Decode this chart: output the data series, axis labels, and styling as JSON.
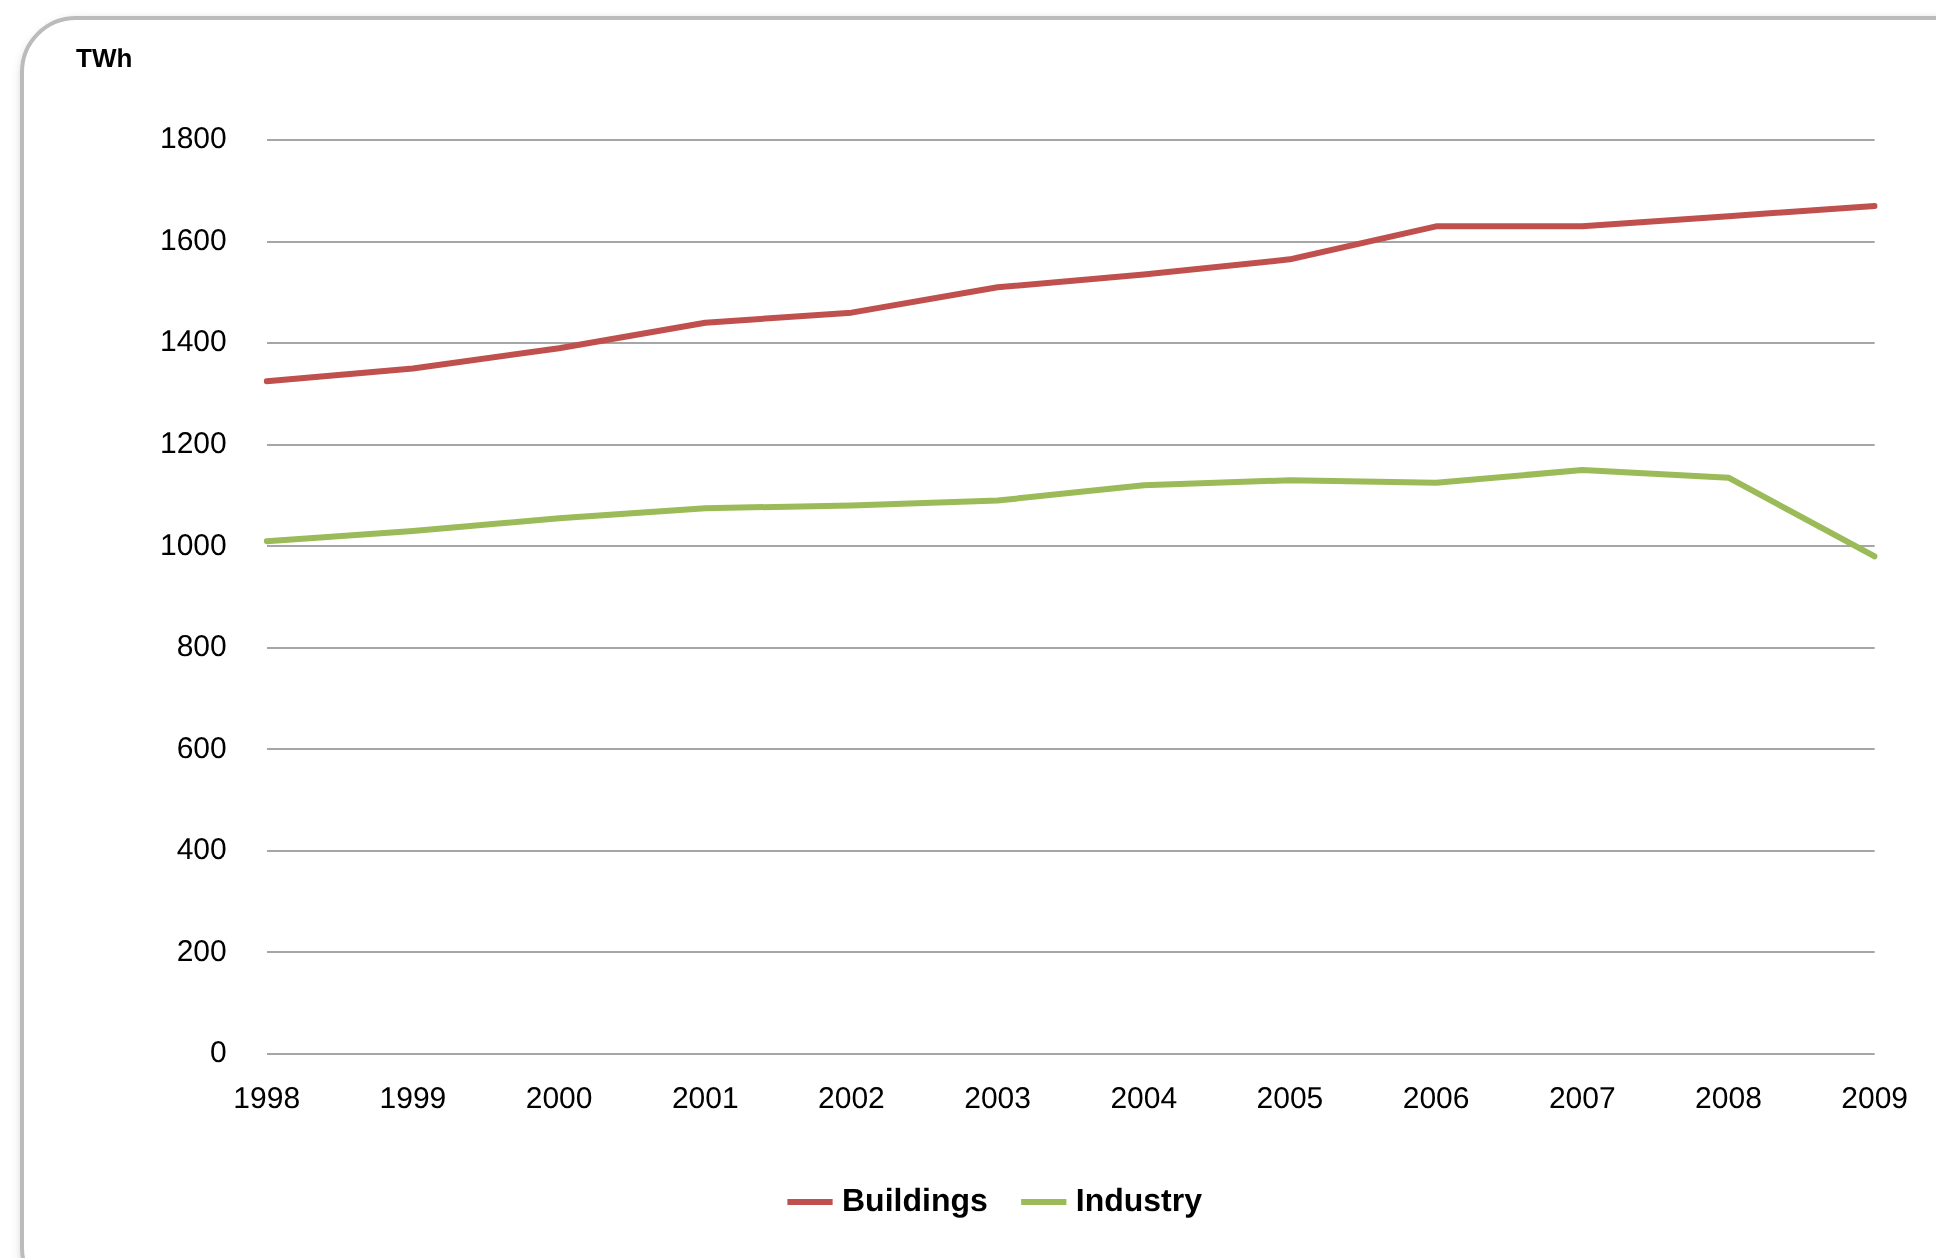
{
  "chart_data": {
    "type": "line",
    "ylabel": "TWh",
    "categories": [
      "1998",
      "1999",
      "2000",
      "2001",
      "2002",
      "2003",
      "2004",
      "2005",
      "2006",
      "2007",
      "2008",
      "2009"
    ],
    "series": [
      {
        "name": "Buildings",
        "color": "#c0504d",
        "values": [
          1325,
          1350,
          1390,
          1440,
          1460,
          1510,
          1535,
          1565,
          1630,
          1630,
          1650,
          1670
        ]
      },
      {
        "name": "Industry",
        "color": "#9bbb59",
        "values": [
          1010,
          1030,
          1055,
          1075,
          1080,
          1090,
          1120,
          1130,
          1125,
          1150,
          1135,
          980
        ]
      }
    ],
    "ylim": [
      0,
      1800
    ],
    "yticks": [
      0,
      200,
      400,
      600,
      800,
      1000,
      1200,
      1400,
      1600,
      1800
    ],
    "grid": "y",
    "legend": "bottom",
    "marker": "none",
    "line_style": "solid"
  }
}
